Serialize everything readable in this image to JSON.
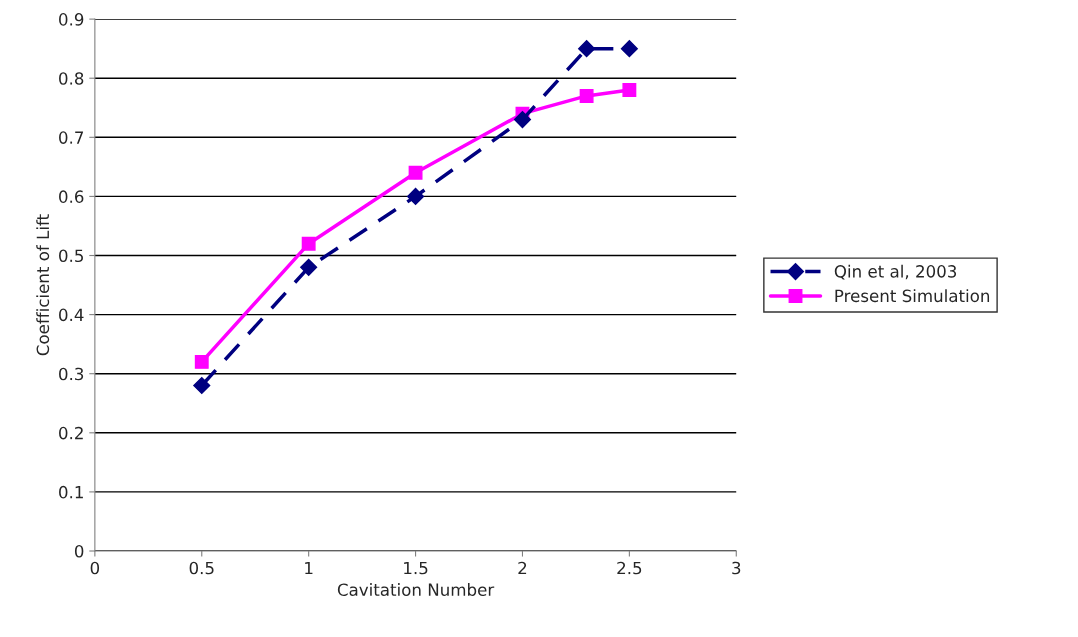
{
  "chart_data": {
    "type": "line",
    "xlabel": "Cavitation Number",
    "ylabel": "Coefficient of Lift",
    "xlim": [
      0,
      3
    ],
    "xticks": [
      0,
      0.5,
      1,
      1.5,
      2,
      2.5,
      3
    ],
    "ylim": [
      0,
      0.9
    ],
    "yticks": [
      0,
      0.1,
      0.2,
      0.3,
      0.4,
      0.5,
      0.6,
      0.7,
      0.8,
      0.9
    ],
    "grid": "y",
    "legend": "right",
    "series": [
      {
        "name": "Qin et al, 2003",
        "color": "#000080",
        "x": [
          0.5,
          1,
          1.5,
          2,
          2.3,
          2.5
        ],
        "values": [
          0.28,
          0.48,
          0.6,
          0.73,
          0.85,
          0.85
        ],
        "marker": "diamond",
        "line_style": "dashed"
      },
      {
        "name": "Present Simulation",
        "color": "#ff00ff",
        "x": [
          0.5,
          1,
          1.5,
          2,
          2.3,
          2.5
        ],
        "values": [
          0.32,
          0.52,
          0.64,
          0.74,
          0.77,
          0.78
        ],
        "marker": "square",
        "line_style": "solid"
      }
    ]
  }
}
